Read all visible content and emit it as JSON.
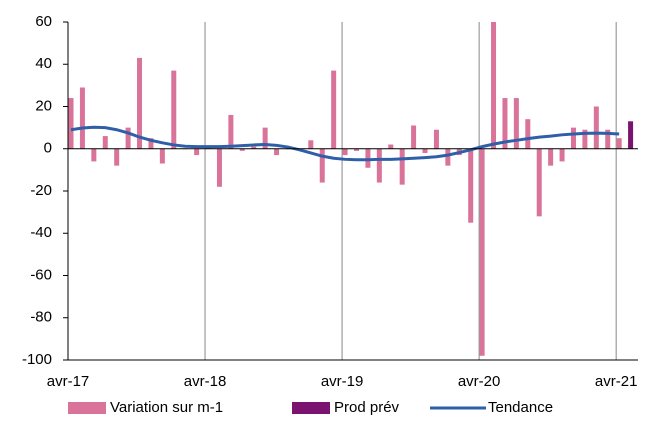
{
  "chart_data": {
    "type": "bar",
    "categories": [
      "avr-17",
      null,
      null,
      null,
      null,
      null,
      null,
      null,
      null,
      null,
      null,
      null,
      "avr-18",
      null,
      null,
      null,
      null,
      null,
      null,
      null,
      null,
      null,
      null,
      null,
      "avr-19",
      null,
      null,
      null,
      null,
      null,
      null,
      null,
      null,
      null,
      null,
      null,
      "avr-20",
      null,
      null,
      null,
      null,
      null,
      null,
      null,
      null,
      null,
      null,
      null,
      "avr-21",
      null
    ],
    "series": [
      {
        "name": "Variation sur m-1",
        "type": "bar",
        "color": "#d9739a",
        "values": [
          24,
          29,
          -6,
          6,
          -8,
          10,
          43,
          5,
          -7,
          37,
          0,
          -3,
          1,
          -18,
          16,
          -1,
          1,
          10,
          -3,
          0,
          0,
          4,
          -16,
          37,
          -3,
          -1,
          -9,
          -16,
          2,
          -17,
          11,
          -2,
          9,
          -8,
          -3,
          -35,
          -98,
          60,
          24,
          24,
          14,
          -32,
          -8,
          -6,
          10,
          9,
          20,
          9,
          5,
          null
        ]
      },
      {
        "name": "Prod prév",
        "type": "bar",
        "color": "#7b1470",
        "values": [
          null,
          null,
          null,
          null,
          null,
          null,
          null,
          null,
          null,
          null,
          null,
          null,
          null,
          null,
          null,
          null,
          null,
          null,
          null,
          null,
          null,
          null,
          null,
          null,
          null,
          null,
          null,
          null,
          null,
          null,
          null,
          null,
          null,
          null,
          null,
          null,
          null,
          null,
          null,
          null,
          null,
          null,
          null,
          null,
          null,
          null,
          null,
          null,
          null,
          13
        ]
      },
      {
        "name": "Tendance",
        "type": "line",
        "color": "#2e5fa8",
        "values": [
          9,
          9.8,
          10.2,
          10,
          9,
          7.5,
          5.5,
          4,
          2.8,
          1.8,
          1.2,
          1,
          1,
          1,
          1.2,
          1.5,
          1.8,
          2,
          1.6,
          0.8,
          -0.5,
          -2,
          -3.5,
          -4.5,
          -5,
          -5.2,
          -5.2,
          -5,
          -5,
          -4.8,
          -4.5,
          -4.2,
          -3.8,
          -3,
          -1.8,
          -0.5,
          1,
          2.2,
          3.2,
          4,
          4.8,
          5.5,
          6,
          6.6,
          7,
          7.3,
          7.4,
          7.3,
          7,
          null
        ]
      }
    ],
    "ylim": [
      -100,
      60
    ],
    "yticks": [
      -100,
      -80,
      -60,
      -40,
      -20,
      0,
      20,
      40,
      60
    ],
    "xgrid_at_labels": true
  }
}
